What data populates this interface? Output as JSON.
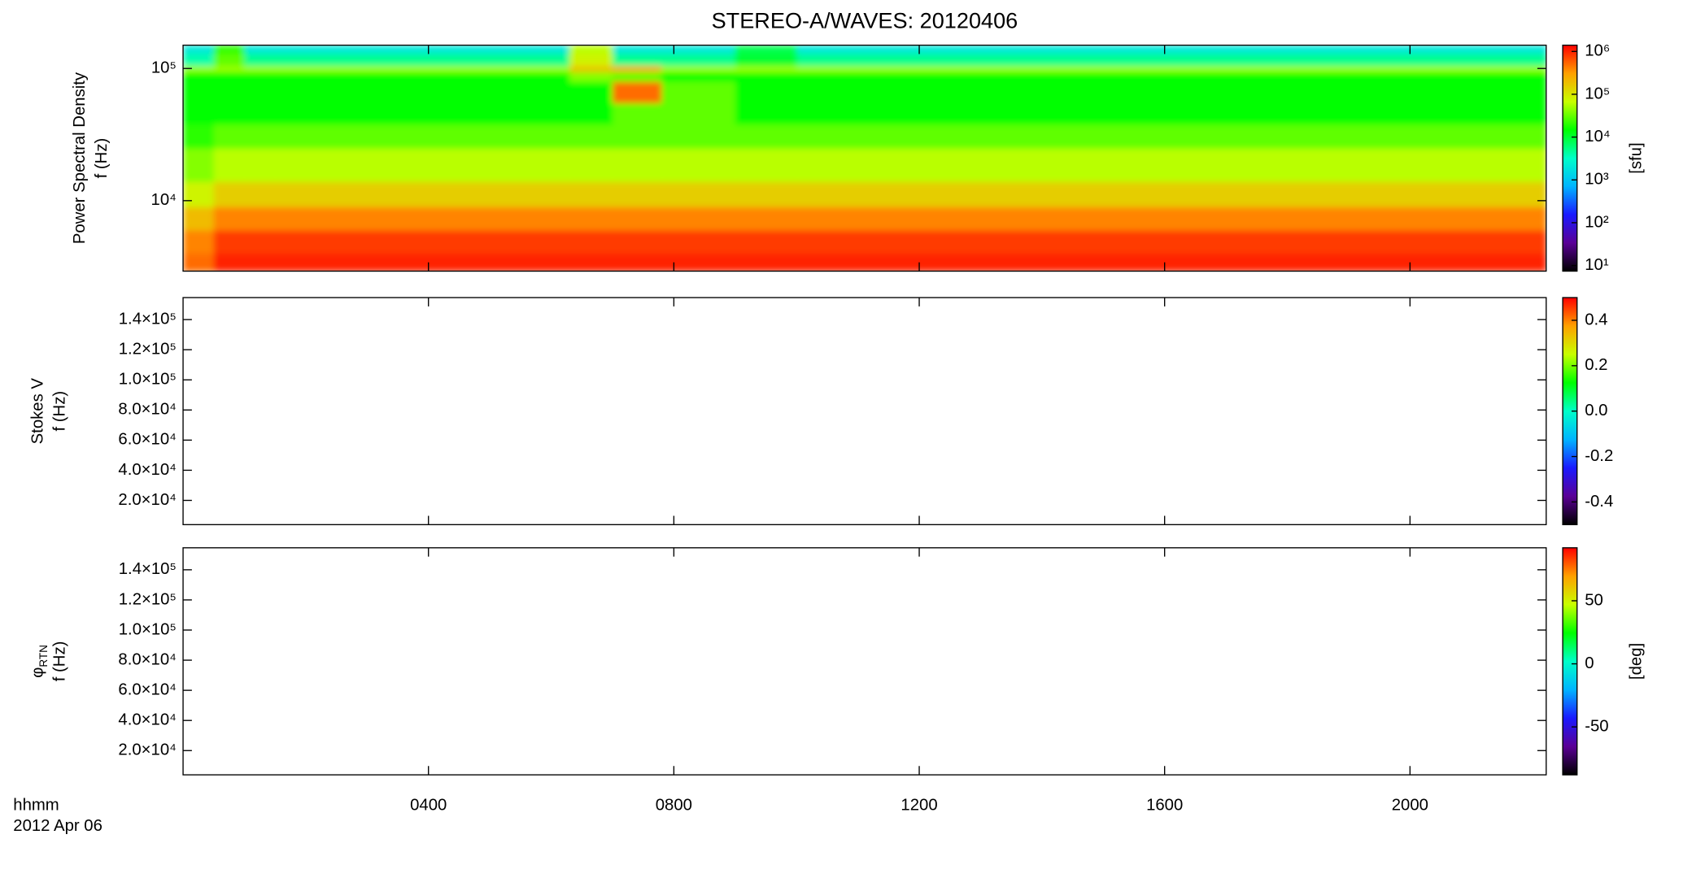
{
  "title": "STEREO-A/WAVES: 20120406",
  "colormap": [
    "#000000",
    "#5a0096",
    "#1a1aff",
    "#00b4ff",
    "#00ffc8",
    "#00ff00",
    "#c8ff00",
    "#ffa000",
    "#ff0000"
  ],
  "chart_data": [
    {
      "type": "heatmap",
      "ylabel": [
        "Power Spectral Density",
        "f (Hz)"
      ],
      "ylog": true,
      "ylim": [
        2930,
        150000
      ],
      "yticks": [
        {
          "value": 10000,
          "label": "10⁴"
        },
        {
          "value": 100000,
          "label": "10⁵"
        }
      ],
      "x_edges": [
        0,
        0.5,
        1,
        1.5,
        6.3,
        7,
        7.8,
        9,
        10,
        22.22
      ],
      "y_edges": [
        2930,
        4000,
        6000,
        9000,
        14000,
        25000,
        38000,
        55000,
        80000,
        95000,
        105000,
        130000,
        150000
      ],
      "z": [
        [
          500000,
          1000000,
          1000000,
          1000000,
          1000000,
          1000000,
          1000000,
          1000000,
          1000000
        ],
        [
          400000,
          800000,
          800000,
          800000,
          800000,
          800000,
          800000,
          800000,
          800000
        ],
        [
          200000,
          400000,
          400000,
          400000,
          400000,
          400000,
          400000,
          400000,
          400000
        ],
        [
          80000,
          150000,
          150000,
          150000,
          150000,
          150000,
          150000,
          150000,
          150000
        ],
        [
          40000,
          60000,
          60000,
          60000,
          60000,
          60000,
          60000,
          60000,
          60000
        ],
        [
          20000,
          30000,
          30000,
          30000,
          30000,
          30000,
          30000,
          30000,
          30000
        ],
        [
          15000,
          15000,
          15000,
          15000,
          15000,
          30000,
          30000,
          15000,
          15000
        ],
        [
          15000,
          15000,
          15000,
          15000,
          15000,
          500000,
          30000,
          15000,
          15000
        ],
        [
          15000,
          15000,
          15000,
          15000,
          40000,
          30000,
          15000,
          15000,
          15000
        ],
        [
          50000,
          50000,
          50000,
          50000,
          200000,
          300000,
          50000,
          50000,
          50000
        ],
        [
          4000,
          30000,
          5000,
          5000,
          80000,
          5000,
          5000,
          10000,
          5000
        ],
        [
          2000,
          20000,
          2000,
          2000,
          60000,
          2000,
          2000,
          8000,
          2000
        ]
      ],
      "colorbar": {
        "label": "[sfu]",
        "log": true,
        "lim": [
          7.4,
          1400000
        ],
        "ticks": [
          {
            "value": 10,
            "label": "10¹"
          },
          {
            "value": 100,
            "label": "10²"
          },
          {
            "value": 1000,
            "label": "10³"
          },
          {
            "value": 10000,
            "label": "10⁴"
          },
          {
            "value": 100000,
            "label": "10⁵"
          },
          {
            "value": 1000000,
            "label": "10⁶"
          }
        ]
      }
    },
    {
      "type": "heatmap",
      "ylabel": [
        "Stokes V",
        "f (Hz)"
      ],
      "ylog": false,
      "ylim": [
        3900,
        154600
      ],
      "yticks": [
        {
          "value": 20000,
          "label": "2.0×10⁴"
        },
        {
          "value": 40000,
          "label": "4.0×10⁴"
        },
        {
          "value": 60000,
          "label": "6.0×10⁴"
        },
        {
          "value": 80000,
          "label": "8.0×10⁴"
        },
        {
          "value": 100000,
          "label": "1.0×10⁵"
        },
        {
          "value": 120000,
          "label": "1.2×10⁵"
        },
        {
          "value": 140000,
          "label": "1.4×10⁵"
        }
      ],
      "colorbar": {
        "log": false,
        "lim": [
          -0.5,
          0.5
        ],
        "ticks": [
          -0.4,
          -0.2,
          {
            "value": 0,
            "label": "0.0"
          },
          0.2,
          0.4
        ]
      }
    },
    {
      "type": "heatmap",
      "ylabel": [
        "φ",
        "f (Hz)"
      ],
      "ylabel_subscript": "RTN",
      "ylog": false,
      "ylim": [
        3900,
        154600
      ],
      "yticks": [
        {
          "value": 20000,
          "label": "2.0×10⁴"
        },
        {
          "value": 40000,
          "label": "4.0×10⁴"
        },
        {
          "value": 60000,
          "label": "6.0×10⁴"
        },
        {
          "value": 80000,
          "label": "8.0×10⁴"
        },
        {
          "value": 100000,
          "label": "1.0×10⁵"
        },
        {
          "value": 120000,
          "label": "1.2×10⁵"
        },
        {
          "value": 140000,
          "label": "1.4×10⁵"
        }
      ],
      "colorbar": {
        "label": "[deg]",
        "log": false,
        "lim": [
          -88,
          92
        ],
        "ticks": [
          -50,
          0,
          50
        ]
      },
      "xlim": [
        0,
        22.22
      ],
      "xticks": [
        {
          "value": 4,
          "label": "0400"
        },
        {
          "value": 8,
          "label": "0800"
        },
        {
          "value": 12,
          "label": "1200"
        },
        {
          "value": 16,
          "label": "1600"
        },
        {
          "value": 20,
          "label": "2000"
        }
      ],
      "xlabel": "hhmm",
      "xdate": "2012 Apr 06"
    }
  ]
}
